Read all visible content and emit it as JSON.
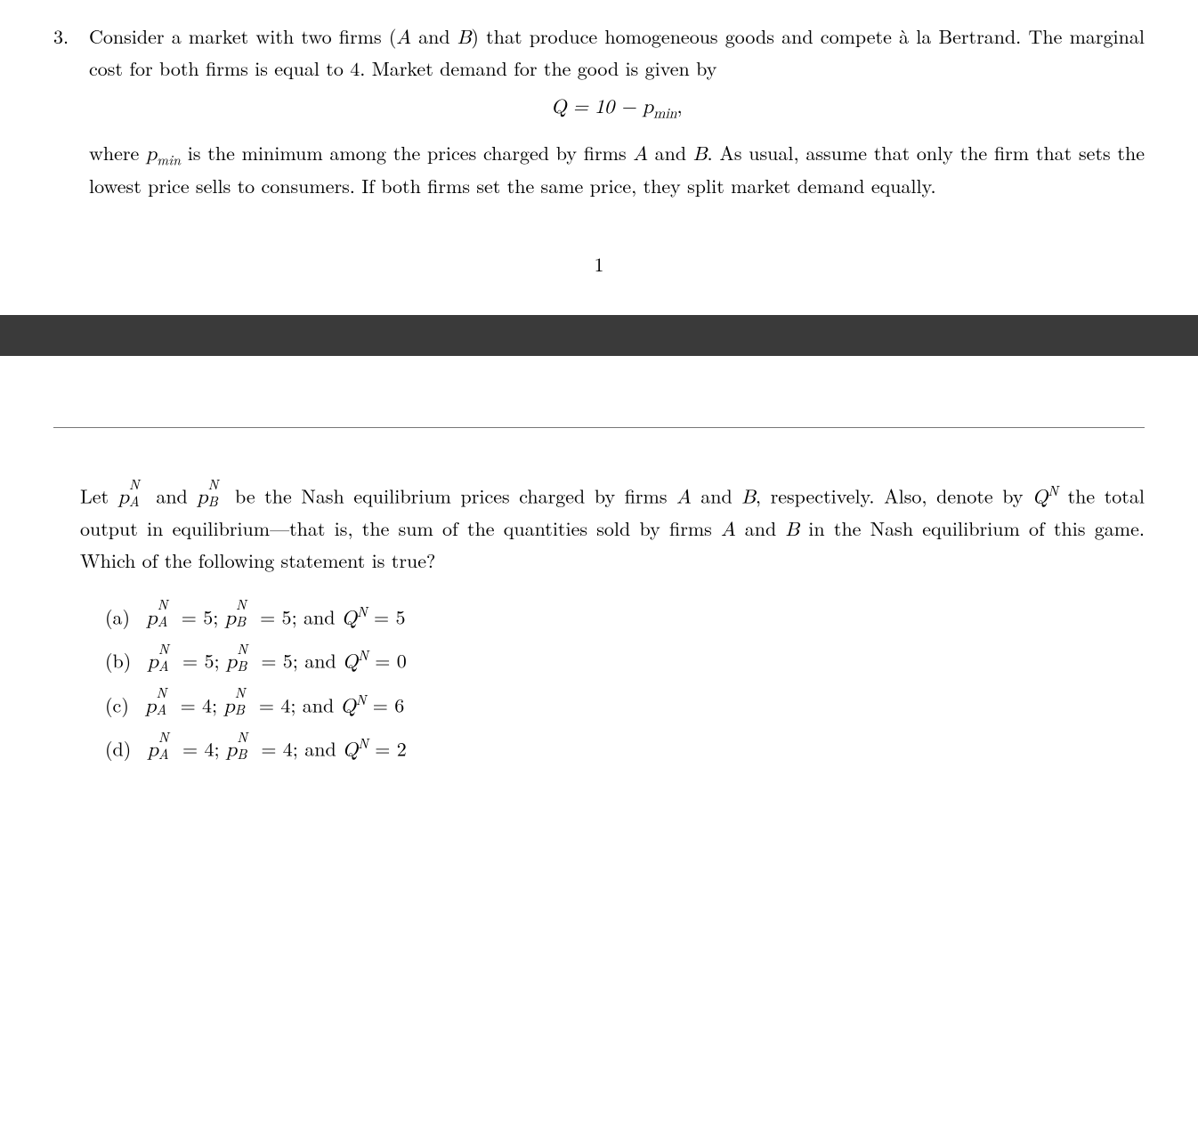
{
  "problem": {
    "number": "3.",
    "text1a": "Consider a market with two firms (",
    "firmA": "A",
    "text1b": " and ",
    "firmB": "B",
    "text1c": ") that produce homogeneous goods and compete à la Bertrand. The marginal cost for both firms is equal to 4. Market demand for the good is given by",
    "equation": "Q = 10 − p",
    "equation_sub": "min",
    "equation_comma": ",",
    "text2a": "where ",
    "pmin_p": "p",
    "pmin_sub": "min",
    "text2b": " is the minimum among the prices charged by firms ",
    "text2c": " and ",
    "text2d": ". As usual, assume that only the firm that sets the lowest price sells to consumers. If both firms set the same price, they split market demand equally."
  },
  "page_number": "1",
  "lower": {
    "intro1": "Let ",
    "pA_p": "p",
    "pA_sup": "N",
    "pA_sub": "A",
    "intro2": " and ",
    "pB_p": "p",
    "pB_sup": "N",
    "pB_sub": "B",
    "intro3": " be the Nash equilibrium prices charged by firms ",
    "firmA": "A",
    "intro4": " and ",
    "firmB": "B",
    "intro5": ", respectively. Also, denote by ",
    "Q": "Q",
    "Q_sup": "N",
    "intro6": " the total output in equilibrium—that is, the sum of the quantities sold by firms ",
    "intro7": " and ",
    "intro8": " in the Nash equilibrium of this game. Which of the following statement is true?"
  },
  "options": {
    "a": {
      "label": "(a)",
      "pA": "5",
      "pB": "5",
      "Q": "5"
    },
    "b": {
      "label": "(b)",
      "pA": "5",
      "pB": "5",
      "Q": "0"
    },
    "c": {
      "label": "(c)",
      "pA": "4",
      "pB": "4",
      "Q": "6"
    },
    "d": {
      "label": "(d)",
      "pA": "4",
      "pB": "4",
      "Q": "2"
    }
  },
  "sym": {
    "p": "p",
    "N": "N",
    "A": "A",
    "B": "B",
    "Q": "Q",
    "eq": " = ",
    "semi": "; ",
    "and": "and "
  }
}
